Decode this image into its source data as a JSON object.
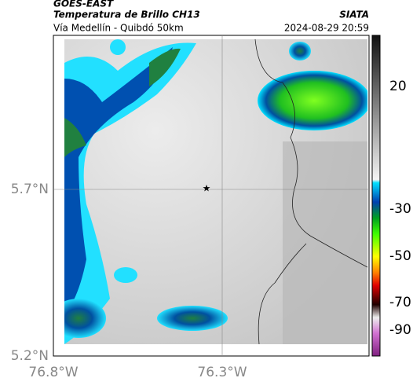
{
  "header": {
    "satellite": "GOES-EAST",
    "title": "Temperatura de Brillo CH13",
    "source": "SIATA",
    "subtitle": "Vía Medellín - Quibdó 50km",
    "timestamp": "2024-08-29 20:59"
  },
  "map": {
    "lat_labels": [
      "5.7°N",
      "5.2°N"
    ],
    "lon_labels": [
      "76.8°W",
      "76.3°W"
    ]
  },
  "colorbar": {
    "ticks": [
      "20",
      "-30",
      "-50",
      "-70",
      "-90"
    ]
  }
}
